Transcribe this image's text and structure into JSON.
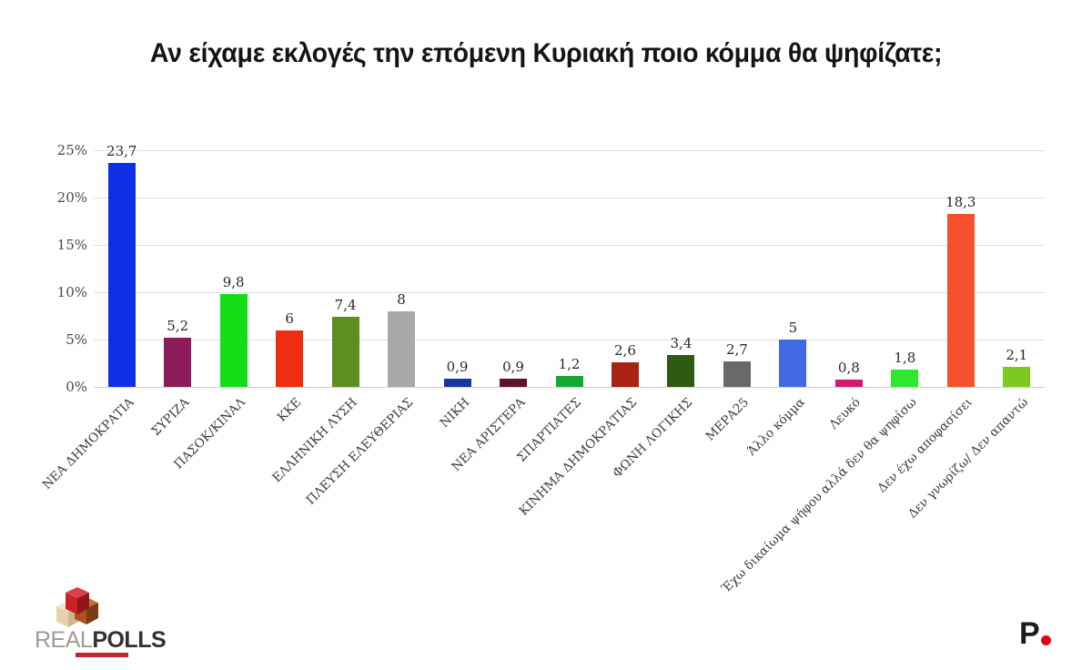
{
  "title": "Αν είχαμε εκλογές την επόμενη Κυριακή ποιο κόμμα θα ψηφίζατε;",
  "chart_data": {
    "type": "bar",
    "categories": [
      "ΝΕΑ ΔΗΜΟΚΡΑΤΙΑ",
      "ΣΥΡΙΖΑ",
      "ΠΑΣΟΚ/ΚΙΝΑΛ",
      "ΚΚΕ",
      "ΕΛΛΗΝΙΚΗ ΛΥΣΗ",
      "ΠΛΕΥΣΗ ΕΛΕΥΘΕΡΙΑΣ",
      "ΝΙΚΗ",
      "ΝΕΑ ΑΡΙΣΤΕΡΑ",
      "ΣΠΑΡΤΙΑΤΕΣ",
      "ΚΙΝΗΜΑ ΔΗΜΟΚΡΑΤΙΑΣ",
      "ΦΩΝΗ ΛΟΓΙΚΗΣ",
      "ΜΕΡΑ25",
      "Άλλο κόμμα",
      "Λευκό",
      "Έχω δικαίωμα ψήφου αλλά δεν θα ψηφίσω",
      "Δεν έχω αποφασίσει",
      "Δεν γνωρίζω/ Δεν απαντώ"
    ],
    "values": [
      23.7,
      5.2,
      9.8,
      6,
      7.4,
      8,
      0.9,
      0.9,
      1.2,
      2.6,
      3.4,
      2.7,
      5,
      0.8,
      1.8,
      18.3,
      2.1
    ],
    "value_labels": [
      "23,7",
      "5,2",
      "9,8",
      "6",
      "7,4",
      "8",
      "0,9",
      "0,9",
      "1,2",
      "2,6",
      "3,4",
      "2,7",
      "5",
      "0,8",
      "1,8",
      "18,3",
      "2,1"
    ],
    "bar_colors": [
      "#0f2fe6",
      "#8e1c5a",
      "#17dd17",
      "#ee2d12",
      "#5b8f1f",
      "#a9a9a9",
      "#1736a4",
      "#5e1326",
      "#13a832",
      "#a92313",
      "#2e5a12",
      "#696969",
      "#4169e1",
      "#d4176e",
      "#2de82d",
      "#f4512c",
      "#7dc91f"
    ],
    "yticks": [
      "0%",
      "5%",
      "10%",
      "15%",
      "20%",
      "25%"
    ],
    "ylim": [
      0,
      25
    ],
    "xlabel": "",
    "ylabel": "",
    "grid": true,
    "legend": "none"
  },
  "footer": {
    "brand_left": {
      "icon": "realpolls-cubes-icon",
      "name_light": "REAL",
      "name_bold": "POLLS"
    },
    "brand_right": {
      "letter": "P",
      "dot_icon": "red-dot-icon"
    }
  },
  "colors": {
    "background": "#ffffff",
    "grid": "#dedede",
    "axis_text": "#4a4a4a",
    "value_text": "#282828",
    "title_text": "#141414",
    "brand_red_strip": "#c0272d",
    "brand_right_dot": "#e30613"
  }
}
